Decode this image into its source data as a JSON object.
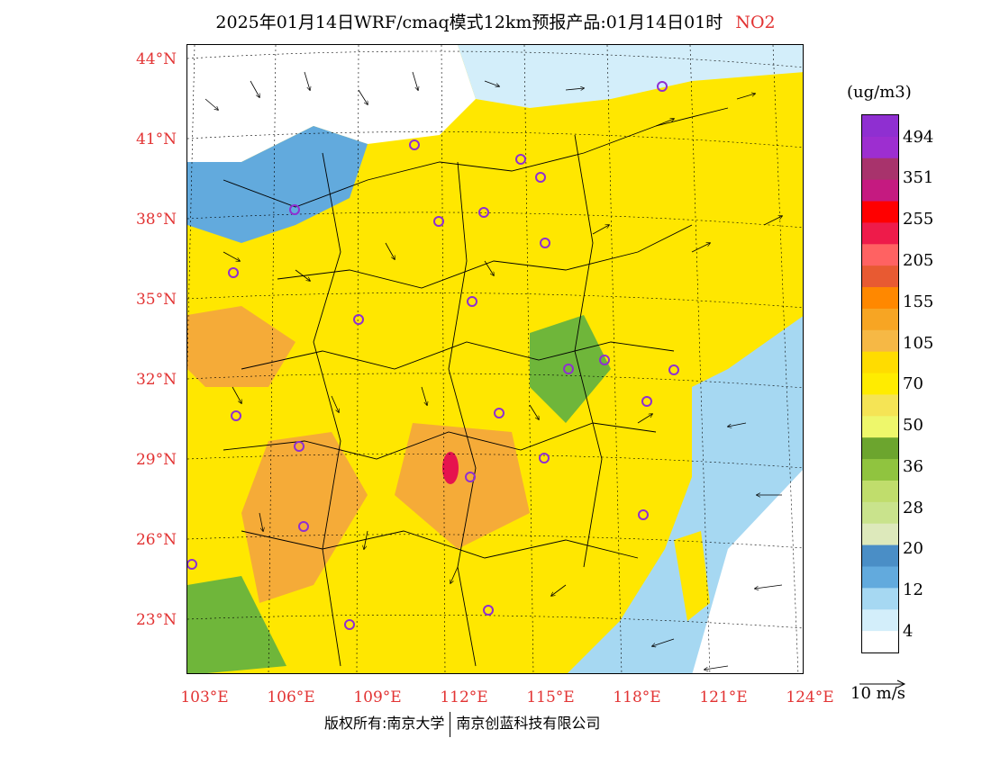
{
  "header": {
    "title": "2025年01月14日WRF/cmaq模式12km预报产品:01月14日01时",
    "species": "NO2"
  },
  "map": {
    "lat_labels": [
      "44°N",
      "41°N",
      "38°N",
      "35°N",
      "32°N",
      "29°N",
      "26°N",
      "23°N"
    ],
    "lon_labels": [
      "103°E",
      "106°E",
      "109°E",
      "112°E",
      "115°E",
      "118°E",
      "121°E",
      "124°E"
    ],
    "colors": {
      "low": "#ffffff",
      "blue": "#4a94c8",
      "green": "#6fb63a",
      "yellow": "#ffe700",
      "orange": "#f5ab38",
      "red": "#e6134e",
      "purple": "#8f2fd1"
    }
  },
  "legend": {
    "unit": "(ug/m3)",
    "labels": [
      "494",
      "351",
      "255",
      "205",
      "155",
      "105",
      "70",
      "50",
      "36",
      "28",
      "20",
      "12",
      "4"
    ],
    "colors": [
      "#8f2fd1",
      "#9d2ed0",
      "#a8336c",
      "#c51a80",
      "#ff0000",
      "#ee1b4a",
      "#ff6262",
      "#e85a32",
      "#ff8800",
      "#f7a523",
      "#f6b845",
      "#ffdc00",
      "#ffec00",
      "#f5e455",
      "#eef76b",
      "#6ca52e",
      "#90c43f",
      "#c0dd6c",
      "#c9e38c",
      "#dde9bb",
      "#4a8ec6",
      "#62aadd",
      "#a6d8f2",
      "#d3eefa",
      "#ffffff"
    ]
  },
  "wind": {
    "reference": "10 m/s"
  },
  "footer": {
    "left": "版权所有:南京大学",
    "right": "南京创蓝科技有限公司"
  }
}
